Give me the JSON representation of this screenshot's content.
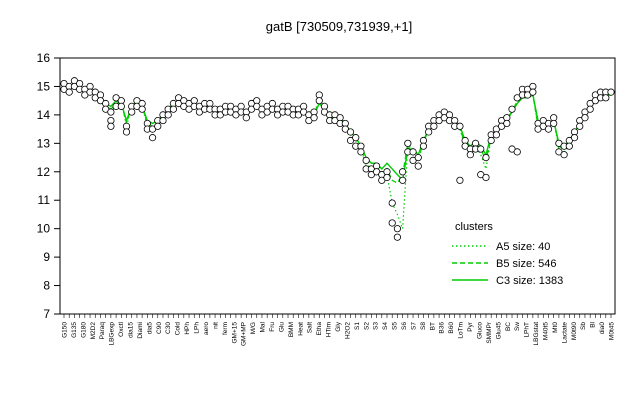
{
  "chart_data": {
    "type": "line",
    "title": "gatB [730509,731939,+1]",
    "xlabel": "",
    "ylabel": "",
    "ylim": [
      7,
      16
    ],
    "yticks": [
      7,
      8,
      9,
      10,
      11,
      12,
      13,
      14,
      15,
      16
    ],
    "grid": false,
    "x_tick_labels": [
      "G150",
      "G135",
      "G180",
      "M2D2",
      "Paraq",
      "LBGexp",
      "Oxctl",
      "dia15",
      "Diami",
      "dia5",
      "C90",
      "C30",
      "Cold",
      "HPh",
      "LPh",
      "aero",
      "nit",
      "ferm",
      "GM+15",
      "GM+MP",
      "MG+t5",
      "MG+10",
      "MG+60",
      "MG+120",
      "MG+180",
      "MG+240",
      "M/G",
      "Mal",
      "Fru",
      "Glu",
      "BMM",
      "Heat",
      "Salt",
      "Etha",
      "HTim",
      "Gly",
      "H2O2",
      "S1",
      "S2",
      "S3",
      "S4",
      "S5",
      "S6",
      "S7",
      "S8",
      "BT",
      "B36",
      "B60",
      "LoTm",
      "Pyr",
      "Gluco",
      "SMMPr",
      "Glu45",
      "T+1",
      "T+2",
      "T+3",
      "T+4",
      "T+5",
      "T+6",
      "BC",
      "Sw",
      "LPhT",
      "LBGstat",
      "Mt0",
      "M40t5",
      "M40t0",
      "Mt5",
      "Mt0",
      "Lactate",
      "M0t90",
      "Sb",
      "Bl",
      "dia0",
      "M0t45",
      "UNK"
    ],
    "x_tick_labels_shown": [
      "G150",
      "G135",
      "G180",
      "M2D2",
      "Paraq",
      "LBGexp",
      "Oxctl",
      "dia15",
      "Diami",
      "dia5",
      "C90",
      "C30",
      "Cold",
      "HPh",
      "LPh",
      "aero",
      "nit",
      "ferm",
      "GM+15",
      "GM+MP",
      "M/G",
      "Mal",
      "Fru",
      "Glu",
      "BMM",
      "Heat",
      "Salt",
      "Etha",
      "HTim",
      "Gly",
      "H2O2",
      "S1",
      "S2",
      "S3",
      "S4",
      "S5",
      "S6",
      "S7",
      "S8",
      "BT",
      "B36",
      "B60",
      "LoTm",
      "Pyr",
      "Gluco",
      "SMMPr",
      "Glu45",
      "BC",
      "Sw",
      "LPhT",
      "LBGstat",
      "M40t5",
      "Mt0",
      "Lactate",
      "M0t90",
      "Sb",
      "Bl",
      "dia0",
      "M0t45"
    ],
    "series": [
      {
        "name": "A5 size: 40",
        "style": "dotted",
        "color": "#00cc00",
        "values": [
          15.0,
          15.1,
          15.2,
          15.0,
          14.8,
          14.9,
          14.7,
          14.6,
          14.3,
          14.0,
          14.4,
          14.5,
          13.6,
          14.3,
          14.5,
          14.3,
          13.6,
          13.6,
          13.7,
          13.9,
          14.2,
          14.4,
          14.5,
          14.4,
          14.3,
          14.4,
          14.2,
          14.3,
          14.3,
          14.1,
          14.1,
          14.2,
          14.2,
          14.1,
          14.2,
          14.0,
          14.3,
          14.5,
          14.1,
          14.2,
          14.3,
          14.1,
          14.2,
          14.2,
          14.1,
          14.1,
          14.2,
          13.9,
          14.0,
          14.6,
          14.2,
          13.9,
          13.9,
          13.8,
          13.6,
          13.2,
          13.0,
          12.8,
          12.2,
          12.0,
          12.1,
          11.8,
          11.9,
          10.9,
          10.5,
          10.0,
          12.9,
          12.6,
          12.4,
          13.0,
          13.5,
          13.7,
          13.9,
          14.0,
          13.9,
          13.7,
          13.5,
          12.9,
          12.6,
          12.9,
          12.6,
          12.1,
          13.2,
          13.4,
          13.7,
          13.8,
          14.1,
          14.5,
          14.8,
          14.7,
          14.8,
          13.5,
          13.7,
          13.6,
          13.8,
          12.8,
          12.7,
          12.9,
          13.3,
          13.7,
          14.0,
          14.3,
          14.6,
          14.7,
          14.8,
          14.7
        ]
      },
      {
        "name": "B5 size: 546",
        "style": "dashed",
        "color": "#00cc00",
        "values": [
          14.9,
          15.0,
          15.1,
          15.0,
          14.9,
          14.9,
          14.8,
          14.6,
          14.4,
          14.2,
          14.4,
          14.4,
          13.7,
          14.3,
          14.5,
          14.3,
          13.7,
          13.6,
          13.7,
          13.9,
          14.2,
          14.4,
          14.5,
          14.4,
          14.3,
          14.4,
          14.2,
          14.3,
          14.3,
          14.1,
          14.1,
          14.2,
          14.2,
          14.1,
          14.2,
          14.0,
          14.3,
          14.4,
          14.1,
          14.2,
          14.3,
          14.1,
          14.2,
          14.2,
          14.1,
          14.1,
          14.2,
          13.9,
          14.0,
          14.5,
          14.2,
          13.9,
          13.9,
          13.8,
          13.6,
          13.3,
          13.1,
          12.8,
          12.3,
          12.1,
          12.2,
          11.9,
          12.1,
          11.7,
          11.6,
          11.9,
          13.0,
          12.7,
          12.5,
          13.0,
          13.5,
          13.7,
          13.9,
          14.0,
          13.9,
          13.7,
          13.5,
          13.0,
          12.7,
          13.0,
          12.8,
          12.4,
          13.2,
          13.4,
          13.7,
          13.8,
          14.1,
          14.5,
          14.7,
          14.6,
          14.7,
          13.6,
          13.7,
          13.6,
          13.8,
          12.9,
          12.8,
          13.0,
          13.3,
          13.7,
          14.0,
          14.3,
          14.6,
          14.6,
          14.7,
          14.7
        ]
      },
      {
        "name": "C3 size: 1383",
        "style": "solid",
        "color": "#00cc00",
        "values": [
          14.9,
          14.9,
          15.0,
          14.9,
          14.8,
          14.8,
          14.7,
          14.6,
          14.4,
          14.3,
          14.5,
          14.4,
          13.8,
          14.3,
          14.4,
          14.3,
          13.8,
          13.7,
          13.8,
          14.0,
          14.2,
          14.4,
          14.4,
          14.4,
          14.3,
          14.4,
          14.3,
          14.3,
          14.3,
          14.2,
          14.2,
          14.2,
          14.2,
          14.2,
          14.2,
          14.1,
          14.3,
          14.4,
          14.2,
          14.2,
          14.3,
          14.2,
          14.2,
          14.2,
          14.1,
          14.1,
          14.2,
          14.0,
          14.0,
          14.4,
          14.2,
          14.0,
          13.9,
          13.9,
          13.7,
          13.4,
          13.2,
          12.9,
          12.5,
          12.3,
          12.3,
          12.1,
          12.3,
          12.1,
          11.9,
          11.7,
          12.8,
          12.8,
          12.6,
          13.1,
          13.5,
          13.7,
          13.9,
          14.0,
          13.9,
          13.8,
          13.6,
          13.1,
          12.9,
          13.1,
          12.9,
          12.6,
          13.3,
          13.5,
          13.7,
          13.9,
          14.1,
          14.4,
          14.6,
          14.6,
          14.7,
          13.8,
          13.7,
          13.7,
          13.8,
          13.0,
          12.9,
          13.1,
          13.4,
          13.7,
          14.0,
          14.3,
          14.5,
          14.6,
          14.7,
          14.7
        ]
      }
    ],
    "points": [
      [
        0,
        15.1
      ],
      [
        0,
        14.9
      ],
      [
        1,
        15.0
      ],
      [
        1,
        14.8
      ],
      [
        2,
        15.2
      ],
      [
        2,
        15.0
      ],
      [
        3,
        15.1
      ],
      [
        3,
        14.9
      ],
      [
        4,
        14.9
      ],
      [
        4,
        14.7
      ],
      [
        5,
        15.0
      ],
      [
        5,
        14.8
      ],
      [
        6,
        14.8
      ],
      [
        6,
        14.6
      ],
      [
        7,
        14.7
      ],
      [
        7,
        14.5
      ],
      [
        8,
        14.4
      ],
      [
        8,
        14.2
      ],
      [
        9,
        14.1
      ],
      [
        9,
        13.8
      ],
      [
        9,
        13.6
      ],
      [
        10,
        14.6
      ],
      [
        10,
        14.3
      ],
      [
        11,
        14.5
      ],
      [
        11,
        14.3
      ],
      [
        12,
        13.6
      ],
      [
        12,
        13.4
      ],
      [
        13,
        14.3
      ],
      [
        13,
        14.1
      ],
      [
        14,
        14.5
      ],
      [
        14,
        14.3
      ],
      [
        15,
        14.4
      ],
      [
        15,
        14.2
      ],
      [
        16,
        13.7
      ],
      [
        16,
        13.5
      ],
      [
        17,
        13.5
      ],
      [
        17,
        13.2
      ],
      [
        18,
        13.8
      ],
      [
        18,
        13.6
      ],
      [
        19,
        14.0
      ],
      [
        19,
        13.8
      ],
      [
        20,
        14.2
      ],
      [
        20,
        14.0
      ],
      [
        21,
        14.4
      ],
      [
        21,
        14.2
      ],
      [
        22,
        14.6
      ],
      [
        22,
        14.4
      ],
      [
        23,
        14.5
      ],
      [
        23,
        14.3
      ],
      [
        24,
        14.4
      ],
      [
        24,
        14.2
      ],
      [
        25,
        14.5
      ],
      [
        25,
        14.3
      ],
      [
        26,
        14.3
      ],
      [
        26,
        14.1
      ],
      [
        27,
        14.4
      ],
      [
        27,
        14.2
      ],
      [
        28,
        14.4
      ],
      [
        28,
        14.2
      ],
      [
        29,
        14.2
      ],
      [
        29,
        14.0
      ],
      [
        30,
        14.2
      ],
      [
        30,
        14.0
      ],
      [
        31,
        14.3
      ],
      [
        31,
        14.1
      ],
      [
        32,
        14.3
      ],
      [
        32,
        14.1
      ],
      [
        33,
        14.2
      ],
      [
        33,
        14.0
      ],
      [
        34,
        14.3
      ],
      [
        34,
        14.1
      ],
      [
        35,
        14.1
      ],
      [
        35,
        13.9
      ],
      [
        36,
        14.4
      ],
      [
        36,
        14.2
      ],
      [
        37,
        14.5
      ],
      [
        37,
        14.3
      ],
      [
        38,
        14.2
      ],
      [
        38,
        14.0
      ],
      [
        39,
        14.3
      ],
      [
        39,
        14.1
      ],
      [
        40,
        14.4
      ],
      [
        40,
        14.2
      ],
      [
        41,
        14.2
      ],
      [
        41,
        14.0
      ],
      [
        42,
        14.3
      ],
      [
        42,
        14.1
      ],
      [
        43,
        14.3
      ],
      [
        43,
        14.1
      ],
      [
        44,
        14.2
      ],
      [
        44,
        14.0
      ],
      [
        45,
        14.2
      ],
      [
        45,
        14.0
      ],
      [
        46,
        14.3
      ],
      [
        46,
        14.1
      ],
      [
        47,
        14.0
      ],
      [
        47,
        13.8
      ],
      [
        48,
        14.1
      ],
      [
        48,
        13.9
      ],
      [
        49,
        14.7
      ],
      [
        49,
        14.5
      ],
      [
        50,
        14.3
      ],
      [
        50,
        14.1
      ],
      [
        51,
        14.0
      ],
      [
        51,
        13.8
      ],
      [
        52,
        14.0
      ],
      [
        52,
        13.8
      ],
      [
        53,
        13.9
      ],
      [
        53,
        13.7
      ],
      [
        54,
        13.7
      ],
      [
        54,
        13.5
      ],
      [
        55,
        13.4
      ],
      [
        55,
        13.1
      ],
      [
        56,
        13.2
      ],
      [
        56,
        12.9
      ],
      [
        57,
        12.9
      ],
      [
        57,
        12.7
      ],
      [
        58,
        12.4
      ],
      [
        58,
        12.1
      ],
      [
        59,
        12.1
      ],
      [
        59,
        11.9
      ],
      [
        60,
        12.2
      ],
      [
        60,
        12.0
      ],
      [
        61,
        11.9
      ],
      [
        61,
        11.7
      ],
      [
        62,
        12.0
      ],
      [
        62,
        11.8
      ],
      [
        63,
        10.2
      ],
      [
        63,
        10.9
      ],
      [
        64,
        10.0
      ],
      [
        64,
        9.7
      ],
      [
        65,
        12.0
      ],
      [
        65,
        11.7
      ],
      [
        66,
        13.0
      ],
      [
        66,
        12.7
      ],
      [
        67,
        12.7
      ],
      [
        67,
        12.4
      ],
      [
        68,
        12.5
      ],
      [
        68,
        12.2
      ],
      [
        69,
        13.1
      ],
      [
        69,
        12.9
      ],
      [
        70,
        13.6
      ],
      [
        70,
        13.4
      ],
      [
        71,
        13.8
      ],
      [
        71,
        13.6
      ],
      [
        72,
        14.0
      ],
      [
        72,
        13.8
      ],
      [
        73,
        14.1
      ],
      [
        73,
        13.9
      ],
      [
        74,
        14.0
      ],
      [
        74,
        13.8
      ],
      [
        75,
        13.8
      ],
      [
        75,
        13.6
      ],
      [
        76,
        13.6
      ],
      [
        76,
        11.7
      ],
      [
        77,
        13.1
      ],
      [
        77,
        12.9
      ],
      [
        78,
        12.8
      ],
      [
        78,
        12.6
      ],
      [
        79,
        13.0
      ],
      [
        79,
        12.8
      ],
      [
        80,
        12.8
      ],
      [
        80,
        11.9
      ],
      [
        81,
        12.5
      ],
      [
        81,
        11.8
      ],
      [
        82,
        13.3
      ],
      [
        82,
        13.1
      ],
      [
        83,
        13.5
      ],
      [
        83,
        13.3
      ],
      [
        84,
        13.8
      ],
      [
        84,
        13.6
      ],
      [
        85,
        13.9
      ],
      [
        85,
        13.7
      ],
      [
        86,
        14.2
      ],
      [
        86,
        12.8
      ],
      [
        87,
        14.6
      ],
      [
        87,
        12.7
      ],
      [
        88,
        14.9
      ],
      [
        88,
        14.7
      ],
      [
        89,
        14.9
      ],
      [
        89,
        14.7
      ],
      [
        90,
        15.0
      ],
      [
        90,
        14.8
      ],
      [
        91,
        13.7
      ],
      [
        91,
        13.5
      ],
      [
        92,
        13.8
      ],
      [
        92,
        13.6
      ],
      [
        93,
        13.7
      ],
      [
        93,
        13.5
      ],
      [
        94,
        13.9
      ],
      [
        94,
        13.7
      ],
      [
        95,
        13.0
      ],
      [
        95,
        12.7
      ],
      [
        96,
        12.9
      ],
      [
        96,
        12.6
      ],
      [
        97,
        13.1
      ],
      [
        97,
        12.9
      ],
      [
        98,
        13.4
      ],
      [
        98,
        13.2
      ],
      [
        99,
        13.8
      ],
      [
        99,
        13.6
      ],
      [
        100,
        14.1
      ],
      [
        100,
        13.9
      ],
      [
        101,
        14.4
      ],
      [
        101,
        14.2
      ],
      [
        102,
        14.7
      ],
      [
        102,
        14.5
      ],
      [
        103,
        14.8
      ],
      [
        103,
        14.6
      ],
      [
        104,
        14.8
      ],
      [
        104,
        14.6
      ],
      [
        105,
        14.8
      ]
    ],
    "legend": {
      "title": "clusters",
      "placement": "right",
      "entries": [
        "A5 size: 40",
        "B5 size: 546",
        "C3 size: 1383"
      ]
    }
  }
}
